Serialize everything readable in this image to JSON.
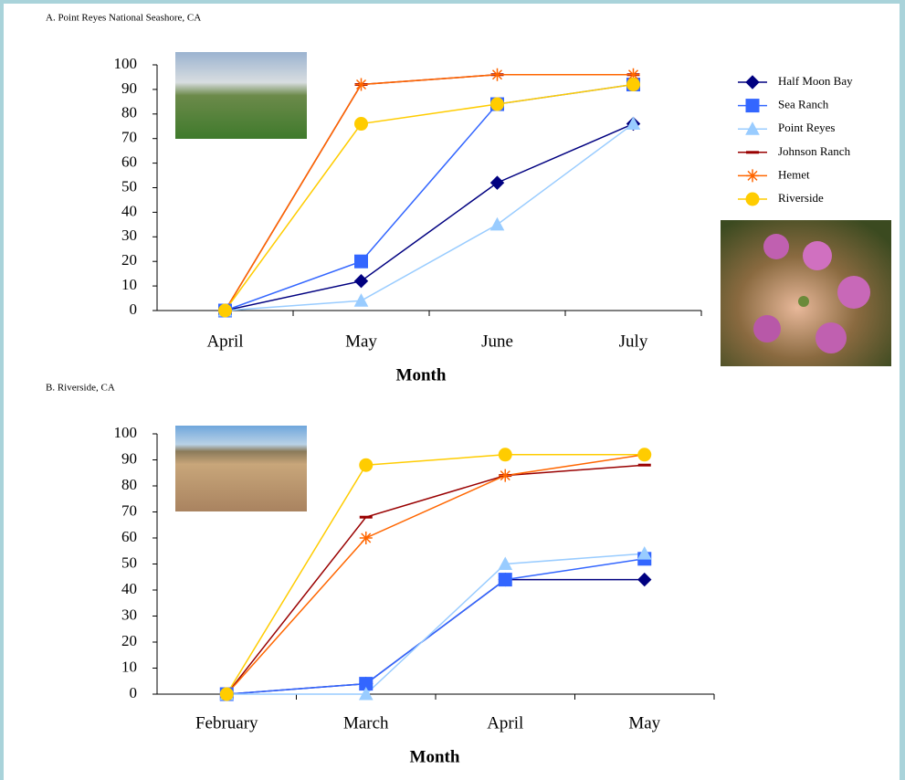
{
  "chart_data": [
    {
      "type": "line",
      "title": "A. Point Reyes National Seashore, CA",
      "x_label": "Month",
      "categories": [
        "April",
        "May",
        "June",
        "July"
      ],
      "ylim": [
        0,
        100
      ],
      "yticks": [
        0,
        10,
        20,
        30,
        40,
        50,
        60,
        70,
        80,
        90,
        100
      ],
      "series": [
        {
          "name": "Half Moon Bay",
          "color": "#000080",
          "marker": "diamond",
          "values": [
            0,
            12,
            52,
            76
          ]
        },
        {
          "name": "Sea Ranch",
          "color": "#3366ff",
          "marker": "square",
          "values": [
            0,
            20,
            84,
            92
          ]
        },
        {
          "name": "Point Reyes",
          "color": "#99ccff",
          "marker": "triangle",
          "values": [
            0,
            4,
            35,
            76
          ]
        },
        {
          "name": "Johnson Ranch",
          "color": "#990000",
          "marker": "dash",
          "values": [
            0,
            92,
            96,
            96
          ]
        },
        {
          "name": "Hemet",
          "color": "#ff6600",
          "marker": "star",
          "values": [
            0,
            92,
            96,
            96
          ]
        },
        {
          "name": "Riverside",
          "color": "#ffcc00",
          "marker": "circle",
          "values": [
            0,
            76,
            84,
            92
          ]
        }
      ]
    },
    {
      "type": "line",
      "title": "B. Riverside, CA",
      "x_label": "Month",
      "categories": [
        "February",
        "March",
        "April",
        "May"
      ],
      "ylim": [
        0,
        100
      ],
      "yticks": [
        0,
        10,
        20,
        30,
        40,
        50,
        60,
        70,
        80,
        90,
        100
      ],
      "series": [
        {
          "color": "#000080",
          "marker": "diamond",
          "values": [
            0,
            4,
            44,
            44
          ]
        },
        {
          "color": "#3366ff",
          "marker": "square",
          "values": [
            0,
            4,
            44,
            52
          ]
        },
        {
          "color": "#99ccff",
          "marker": "triangle",
          "values": [
            0,
            0,
            50,
            54
          ]
        },
        {
          "color": "#990000",
          "marker": "dash",
          "values": [
            0,
            68,
            84,
            88
          ]
        },
        {
          "color": "#ff6600",
          "marker": "star",
          "values": [
            0,
            60,
            84,
            92
          ]
        },
        {
          "color": "#ffcc00",
          "marker": "circle",
          "values": [
            0,
            88,
            92,
            92
          ]
        }
      ]
    }
  ]
}
